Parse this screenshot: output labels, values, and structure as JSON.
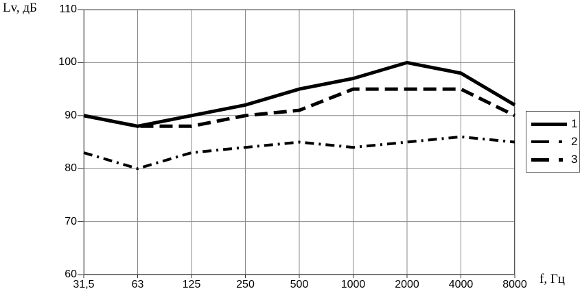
{
  "chart_data": {
    "type": "line",
    "title": "",
    "ylabel": "Lv, дБ",
    "xlabel": "f, Гц",
    "ylim": [
      60,
      110
    ],
    "ytick_labels": [
      "110",
      "100",
      "90",
      "80",
      "70",
      "60"
    ],
    "categories": [
      "31,5",
      "63",
      "125",
      "250",
      "500",
      "1000",
      "2000",
      "4000",
      "8000"
    ],
    "grid": true,
    "legend_position": "right",
    "line_color": "#000000",
    "grid_color": "#8a8a8a",
    "border_color": "#555555",
    "series": [
      {
        "name": "1",
        "style": "solid",
        "width": 5,
        "values": [
          90,
          88,
          90,
          92,
          95,
          97,
          100,
          98,
          92
        ]
      },
      {
        "name": "2",
        "style": "dashdot",
        "width": 4,
        "values": [
          83,
          80,
          83,
          84,
          85,
          84,
          85,
          86,
          85
        ]
      },
      {
        "name": "3",
        "style": "longdash",
        "width": 5,
        "values": [
          90,
          88,
          88,
          90,
          91,
          95,
          95,
          95,
          90
        ]
      }
    ]
  }
}
